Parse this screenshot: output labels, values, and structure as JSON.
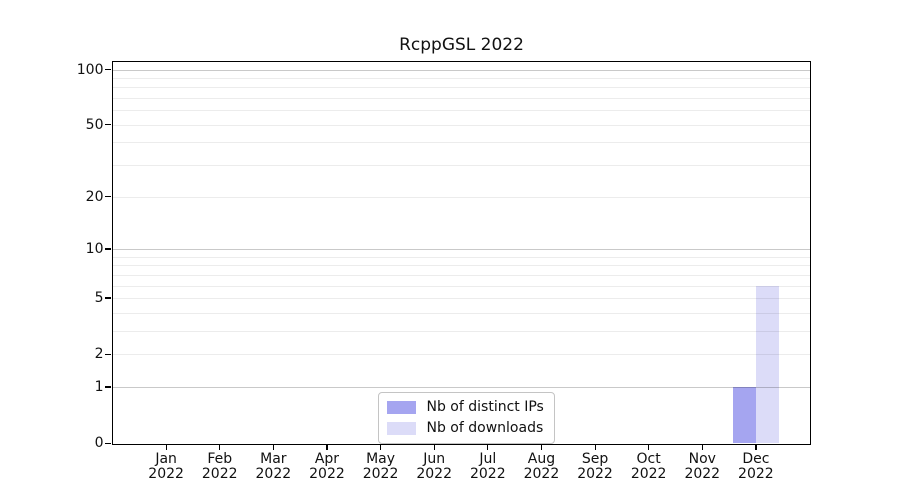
{
  "title": "RcppGSL 2022",
  "chart_data": {
    "type": "bar",
    "title": "RcppGSL 2022",
    "categories": [
      "Jan",
      "Feb",
      "Mar",
      "Apr",
      "May",
      "Jun",
      "Jul",
      "Aug",
      "Sep",
      "Oct",
      "Nov",
      "Dec"
    ],
    "category_year": "2022",
    "series": [
      {
        "name": "Nb of distinct IPs",
        "color": "#a5a5f0",
        "values": [
          0,
          0,
          0,
          0,
          0,
          0,
          0,
          0,
          0,
          0,
          0,
          1
        ]
      },
      {
        "name": "Nb of downloads",
        "color": "#dcdcf8",
        "values": [
          0,
          0,
          0,
          0,
          0,
          0,
          0,
          0,
          0,
          0,
          0,
          6
        ]
      }
    ],
    "yscale": "log1p",
    "ylim": [
      0,
      100
    ],
    "yticks": [
      0,
      1,
      2,
      5,
      10,
      20,
      50,
      100
    ],
    "gridlines_major": [
      1,
      10,
      100
    ],
    "gridlines_minor": [
      2,
      3,
      4,
      5,
      6,
      7,
      8,
      9,
      20,
      30,
      40,
      50,
      60,
      70,
      80,
      90
    ],
    "grid": true,
    "legend_position": "lower center"
  },
  "colors": {
    "gridline_major": "#c9c9c9",
    "gridline_minor": "#ececec",
    "axis": "#000000",
    "text": "#111111",
    "legend_border": "#c4c4c4"
  }
}
